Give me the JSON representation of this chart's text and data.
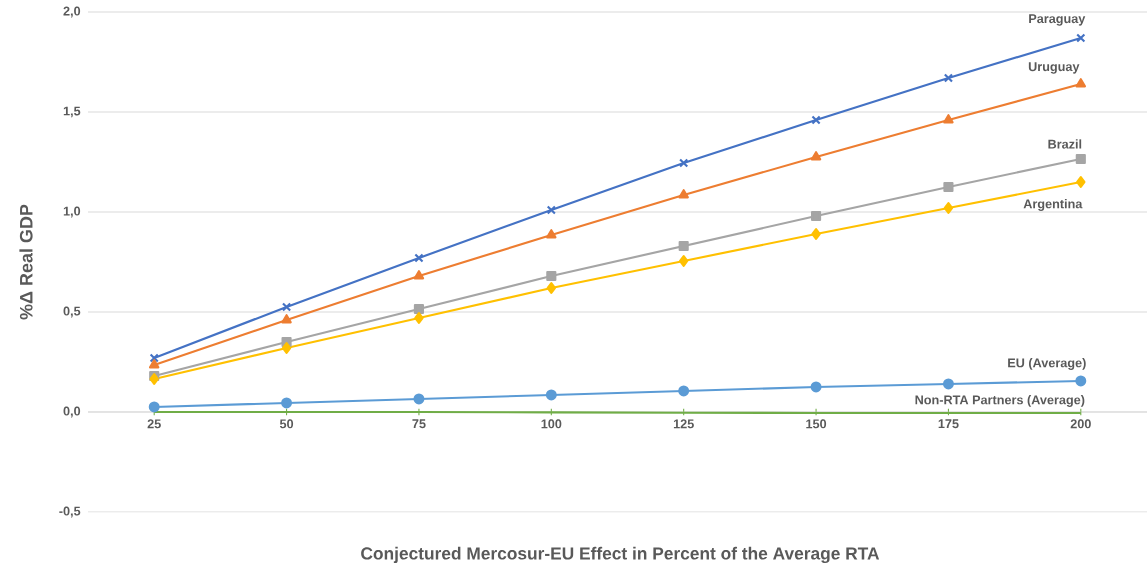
{
  "chart_data": {
    "type": "line",
    "xlabel": "Conjectured Mercosur-EU Effect in Percent of the Average RTA",
    "ylabel": "%Δ Real GDP",
    "x": [
      25,
      50,
      75,
      100,
      125,
      150,
      175,
      200
    ],
    "xlim": [
      12.5,
      212.5
    ],
    "xticks": [
      25,
      50,
      75,
      100,
      125,
      150,
      175,
      200
    ],
    "ylim": [
      -0.5,
      2.0
    ],
    "yticks": [
      {
        "value": -0.5,
        "label": "-0,5"
      },
      {
        "value": 0,
        "label": "0,0"
      },
      {
        "value": 0.5,
        "label": "0,5"
      },
      {
        "value": 1.0,
        "label": "1,0"
      },
      {
        "value": 1.5,
        "label": "1,5"
      },
      {
        "value": 2.0,
        "label": "2,0"
      }
    ],
    "grid": "y",
    "legend": false,
    "line_style": "solid",
    "series": [
      {
        "name": "Paraguay",
        "color": "#4472c4",
        "marker": "cross",
        "values": [
          0.27,
          0.525,
          0.77,
          1.01,
          1.245,
          1.46,
          1.67,
          1.87
        ]
      },
      {
        "name": "Uruguay",
        "color": "#ed7d31",
        "marker": "triangle",
        "values": [
          0.235,
          0.46,
          0.68,
          0.885,
          1.085,
          1.275,
          1.46,
          1.64
        ]
      },
      {
        "name": "Brazil",
        "color": "#a5a5a5",
        "marker": "square",
        "values": [
          0.18,
          0.35,
          0.515,
          0.68,
          0.83,
          0.98,
          1.125,
          1.265
        ]
      },
      {
        "name": "Argentina",
        "color": "#ffc000",
        "marker": "diamond",
        "values": [
          0.165,
          0.32,
          0.47,
          0.62,
          0.755,
          0.89,
          1.02,
          1.15
        ]
      },
      {
        "name": "EU (Average)",
        "color": "#5b9bd5",
        "marker": "circle",
        "values": [
          0.025,
          0.045,
          0.065,
          0.085,
          0.105,
          0.125,
          0.14,
          0.155
        ]
      },
      {
        "name": "Non-RTA Partners (Average)",
        "color": "#70ad47",
        "marker": "none",
        "values": [
          0.0,
          0.0,
          0.0,
          -0.002,
          -0.004,
          -0.005,
          -0.005,
          -0.005
        ]
      }
    ]
  }
}
